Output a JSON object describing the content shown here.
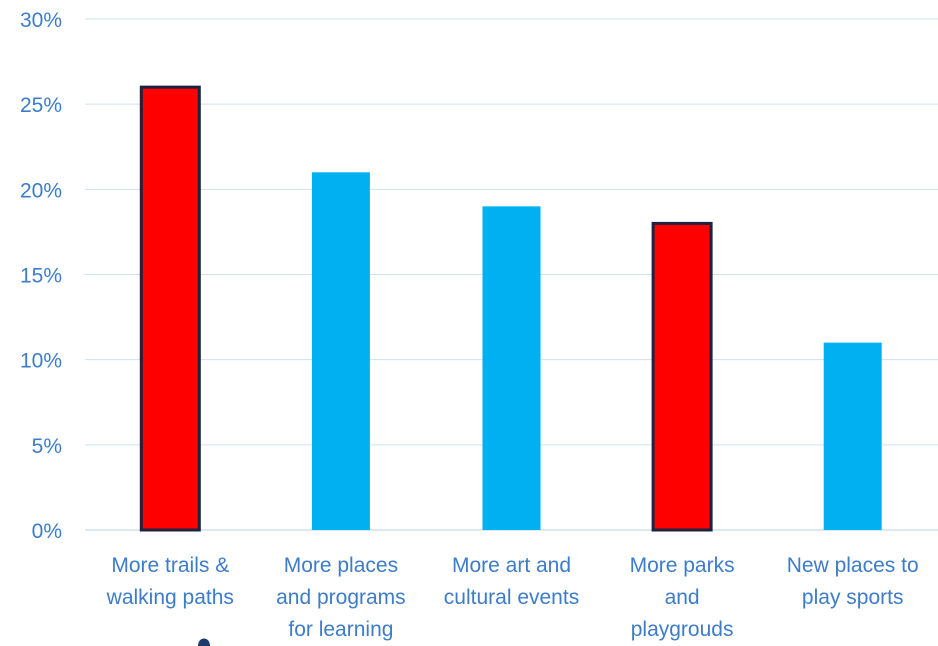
{
  "chart_data": {
    "type": "bar",
    "title": "",
    "xlabel": "",
    "ylabel": "",
    "ylim": [
      0,
      30
    ],
    "y_ticks": [
      0,
      5,
      10,
      15,
      20,
      25,
      30
    ],
    "y_tick_labels": [
      "0%",
      "5%",
      "10%",
      "15%",
      "20%",
      "25%",
      "30%"
    ],
    "grid": true,
    "categories": [
      "More trails & walking paths",
      "More places and programs for learning",
      "More art and cultural events",
      "More parks and playgrouds",
      "New places to play sports"
    ],
    "category_label_lines": [
      [
        "More trails &",
        "walking paths"
      ],
      [
        "More places",
        "and programs",
        "for learning"
      ],
      [
        "More art and",
        "cultural events"
      ],
      [
        "More parks",
        "and",
        "playgrouds"
      ],
      [
        "New places to",
        "play sports"
      ]
    ],
    "values": [
      26,
      21,
      19,
      18,
      11
    ],
    "highlighted": [
      true,
      false,
      false,
      true,
      false
    ],
    "colors": {
      "bar": "#00b0f0",
      "highlight": "#ff0000",
      "highlight_border": "#1c2340",
      "text": "#3d7cc9",
      "grid": "#cfe0ee"
    }
  }
}
